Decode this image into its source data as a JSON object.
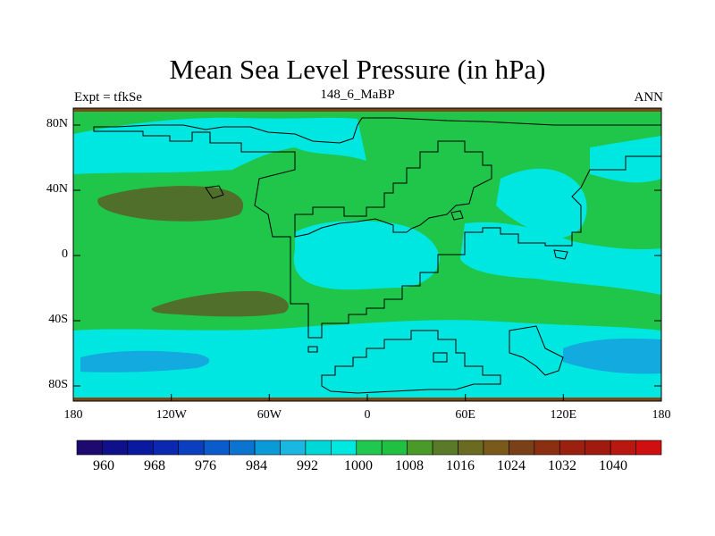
{
  "title": "Mean Sea Level Pressure (in hPa)",
  "subtitle": {
    "left": "Expt = tfkSe",
    "center": "148_6_MaBP",
    "right": "ANN"
  },
  "axes": {
    "lat_labels": [
      "80N",
      "40N",
      "0",
      "40S",
      "80S"
    ],
    "lon_labels": [
      "180",
      "120W",
      "60W",
      "0",
      "60E",
      "120E",
      "180"
    ]
  },
  "colorbar": {
    "colors": [
      "#1e0a6e",
      "#10108a",
      "#0a1aa0",
      "#0a28b0",
      "#0a40c0",
      "#0a5ccc",
      "#0a74d0",
      "#0a9ad8",
      "#1ab8e0",
      "#00d8d8",
      "#00e8e0",
      "#20c850",
      "#20c040",
      "#4a9a2a",
      "#5a7a2a",
      "#6a6a20",
      "#7a5a1a",
      "#7a4018",
      "#8a3010",
      "#9a2010",
      "#a01a10",
      "#b81810",
      "#d01010"
    ],
    "labels": [
      "960",
      "968",
      "976",
      "984",
      "992",
      "1000",
      "1008",
      "1016",
      "1024",
      "1032",
      "1040"
    ]
  },
  "map_colors": {
    "ocean_high": "#1fc64a",
    "low": "#00e6e0",
    "very_low": "#12aadf",
    "high": "#4f6f2a",
    "polar_edge": "#7a4a1a"
  }
}
